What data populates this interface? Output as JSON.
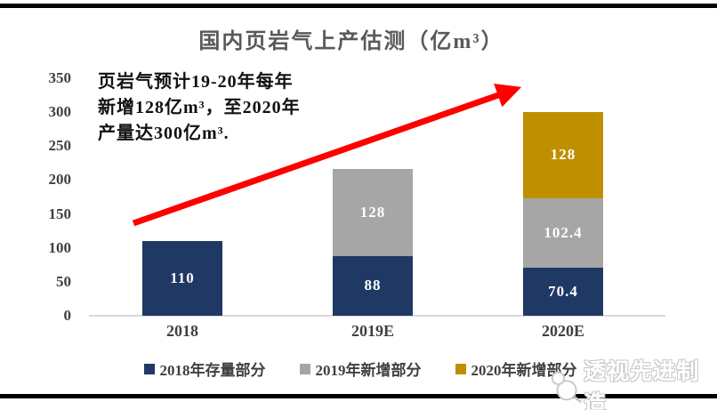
{
  "page": {
    "title": "国内页岩气上产估测（亿m³）",
    "annotation": "页岩气预计19-20年每年\n新增128亿m³，至2020年\n产量达300亿m³.",
    "watermark": "透视先进制造"
  },
  "chart_data": {
    "type": "bar",
    "stacked": true,
    "title": "国内页岩气上产估测（亿m³）",
    "categories": [
      "2018",
      "2019E",
      "2020E"
    ],
    "series": [
      {
        "name": "2018年存量部分",
        "color": "#1F3864",
        "values": [
          110,
          88,
          70.4
        ]
      },
      {
        "name": "2019年新增部分",
        "color": "#A6A6A6",
        "values": [
          null,
          128,
          102.4
        ]
      },
      {
        "name": "2020年新增部分",
        "color": "#BF8F00",
        "values": [
          null,
          null,
          128
        ]
      }
    ],
    "totals": [
      110,
      216,
      300.8
    ],
    "ylim": [
      0,
      350
    ],
    "yticks": [
      0,
      50,
      100,
      150,
      200,
      250,
      300,
      350
    ],
    "grid": false,
    "legend_position": "bottom",
    "bar_value_labels": true,
    "annotation_arrow_color": "#FF0000"
  }
}
